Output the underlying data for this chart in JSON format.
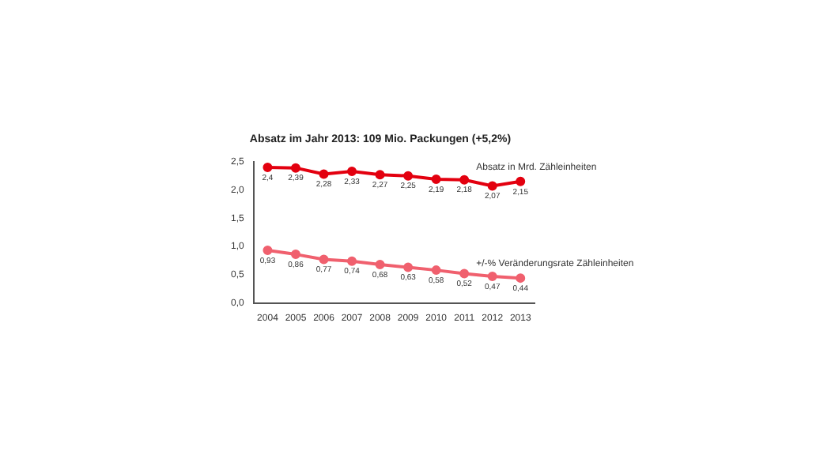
{
  "chart_data": {
    "type": "line",
    "title": "Absatz im Jahr 2013: 109 Mio. Packungen (+5,2%)",
    "categories": [
      "2004",
      "2005",
      "2006",
      "2007",
      "2008",
      "2009",
      "2010",
      "2011",
      "2012",
      "2013"
    ],
    "series": [
      {
        "name": "Absatz in Mrd. Zähleinheiten",
        "color": "#e3000f",
        "values": [
          2.4,
          2.39,
          2.28,
          2.33,
          2.27,
          2.25,
          2.19,
          2.18,
          2.07,
          2.15
        ],
        "value_labels": [
          "2,4",
          "2,39",
          "2,28",
          "2,33",
          "2,27",
          "2,25",
          "2,19",
          "2,18",
          "2,07",
          "2,15"
        ]
      },
      {
        "name": "+/-% Veränderungsrate Zähleinheiten",
        "color": "#f0606e",
        "values": [
          0.93,
          0.86,
          0.77,
          0.74,
          0.68,
          0.63,
          0.58,
          0.52,
          0.47,
          0.44
        ],
        "value_labels": [
          "0,93",
          "0,86",
          "0,77",
          "0,74",
          "0,68",
          "0,63",
          "0,58",
          "0,52",
          "0,47",
          "0,44"
        ]
      }
    ],
    "ylim": [
      0,
      2.5
    ],
    "yticks": [
      {
        "value": 0,
        "label": "0,0"
      },
      {
        "value": 0.5,
        "label": "0,5"
      },
      {
        "value": 1,
        "label": "1,0"
      },
      {
        "value": 1.5,
        "label": "1,5"
      },
      {
        "value": 2,
        "label": "2,0"
      },
      {
        "value": 2.5,
        "label": "2,5"
      }
    ],
    "grid": false,
    "legend": false,
    "marker": "circle",
    "line_style": "solid"
  }
}
